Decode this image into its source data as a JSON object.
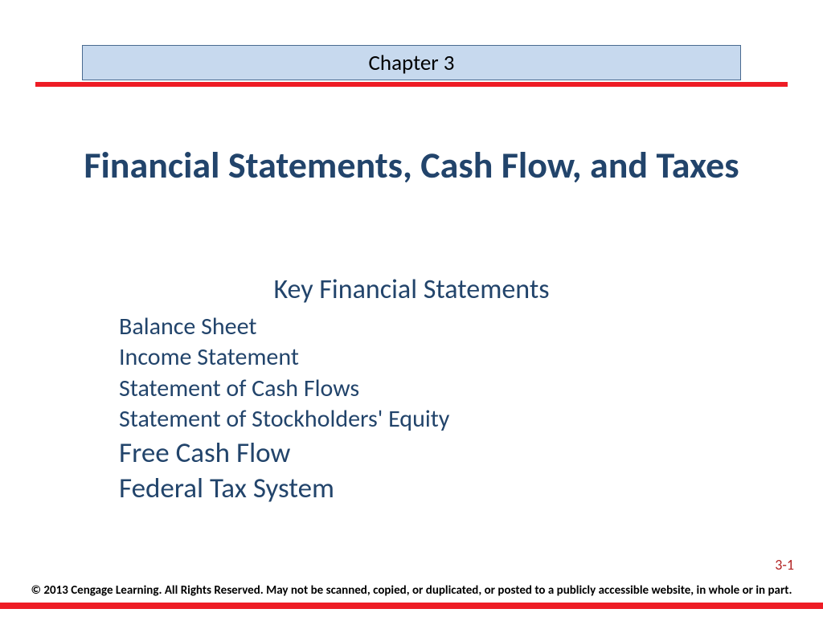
{
  "header": {
    "chapter_label": "Chapter 3",
    "banner_bg": "#c7d9ee",
    "banner_border": "#4a6a90",
    "rule_color": "#ee1c25"
  },
  "title": {
    "text": "Financial Statements, Cash Flow, and Taxes",
    "color": "#22446b",
    "fontsize_pt": 34,
    "weight": "700"
  },
  "subtitle": {
    "text": "Key Financial Statements",
    "color": "#22446b",
    "fontsize_pt": 26
  },
  "list": {
    "items": [
      {
        "text": "Balance Sheet",
        "size": "small"
      },
      {
        "text": "Income Statement",
        "size": "small"
      },
      {
        "text": "Statement of Cash Flows",
        "size": "small"
      },
      {
        "text": "Statement of Stockholders' Equity",
        "size": "small"
      },
      {
        "text": "Free Cash Flow",
        "size": "large"
      },
      {
        "text": "Federal Tax System",
        "size": "large"
      }
    ],
    "color": "#22446b",
    "small_fontsize_pt": 22,
    "large_fontsize_pt": 26
  },
  "footer": {
    "page_number": "3-1",
    "page_number_color": "#b22222",
    "copyright": "© 2013 Cengage Learning. All Rights Reserved. May not be scanned, copied, or duplicated, or posted to a publicly accessible website, in whole or in part.",
    "rule_color": "#ee1c25"
  },
  "background_color": "#ffffff"
}
